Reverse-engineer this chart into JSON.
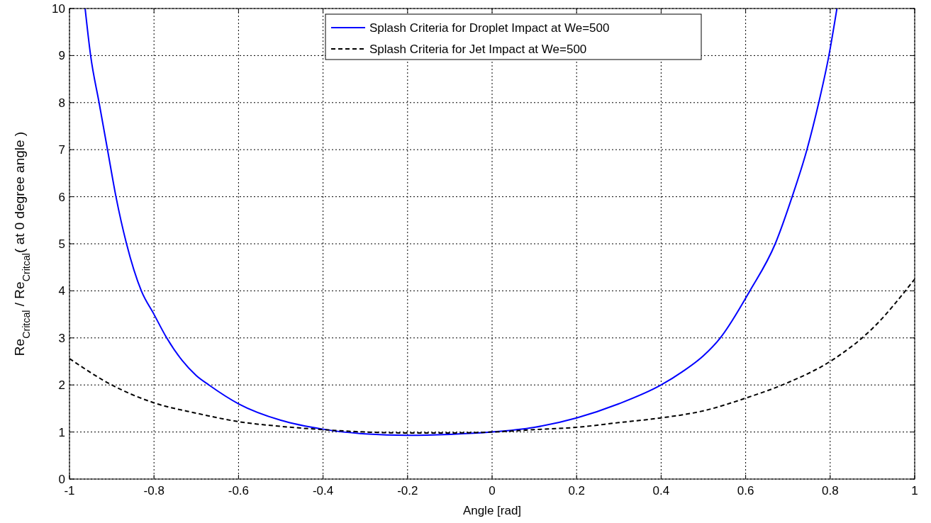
{
  "chart_data": {
    "type": "line",
    "xlabel": "Angle [rad]",
    "ylabel": "Re$_{Critcal}$ / Re$_{Critcal}$( at 0 degree angle )",
    "xlim": [
      -1,
      1
    ],
    "xticks": [
      -1,
      -0.8,
      -0.6,
      -0.4,
      -0.2,
      0,
      0.2,
      0.4,
      0.6,
      0.8,
      1
    ],
    "ylim": [
      0,
      10
    ],
    "yticks": [
      0,
      1,
      2,
      3,
      4,
      5,
      6,
      7,
      8,
      9,
      10
    ],
    "grid": true,
    "legend": "top",
    "series": [
      {
        "name": "Splash Criteria for Droplet Impact at We=500",
        "color": "#0000ff",
        "line_style": "solid",
        "x": [
          -0.963,
          -0.95,
          -0.93,
          -0.91,
          -0.89,
          -0.865,
          -0.83,
          -0.8,
          -0.77,
          -0.7,
          -0.67,
          -0.6,
          -0.5,
          -0.4,
          -0.3,
          -0.2,
          -0.1,
          0,
          0.1,
          0.2,
          0.3,
          0.4,
          0.45,
          0.5,
          0.54,
          0.61,
          0.67,
          0.71,
          0.745,
          0.773,
          0.797,
          0.816
        ],
        "values": [
          10,
          9,
          8,
          7,
          6,
          5,
          4,
          3.5,
          3,
          2.2,
          2,
          1.6,
          1.25,
          1.06,
          0.96,
          0.93,
          0.95,
          1,
          1.1,
          1.3,
          1.6,
          2,
          2.28,
          2.62,
          3,
          4,
          5,
          6,
          7,
          8,
          9,
          10
        ]
      },
      {
        "name": "Splash Criteria for Jet Impact at We=500",
        "color": "#000000",
        "line_style": "dashed",
        "x": [
          -1,
          -0.9,
          -0.8,
          -0.7,
          -0.6,
          -0.5,
          -0.4,
          -0.3,
          -0.2,
          -0.1,
          0,
          0.1,
          0.2,
          0.3,
          0.4,
          0.5,
          0.6,
          0.7,
          0.8,
          0.9,
          1
        ],
        "values": [
          2.56,
          2.0,
          1.62,
          1.4,
          1.22,
          1.12,
          1.05,
          1.0,
          0.98,
          0.98,
          1,
          1.05,
          1.1,
          1.2,
          1.3,
          1.45,
          1.72,
          2.05,
          2.5,
          3.2,
          4.25
        ]
      }
    ]
  }
}
